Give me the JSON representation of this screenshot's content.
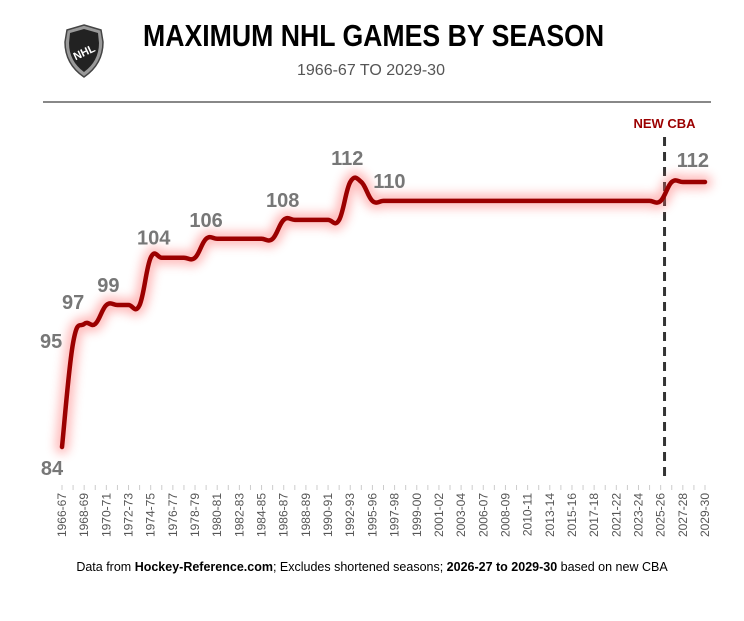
{
  "header": {
    "title": "MAXIMUM NHL GAMES BY SEASON",
    "subtitle": "1966-67 TO 2029-30",
    "logo_text": "NHL"
  },
  "footer": {
    "p1": "Data from ",
    "b1": "Hockey-Reference.com",
    "p2": "; Excludes shortened seasons; ",
    "b2": "2026-27 to 2029-30",
    "p3": " based on new CBA"
  },
  "colors": {
    "line": "#9b0000",
    "glow": "#ff6b6b",
    "label": "#777777",
    "cba": "#9b0000"
  },
  "chart_data": {
    "type": "line",
    "title": "MAXIMUM NHL GAMES BY SEASON",
    "subtitle": "1966-67 TO 2029-30",
    "xlabel": "",
    "ylabel": "",
    "ylim": [
      84,
      112
    ],
    "grid": false,
    "x": [
      "1966-67",
      "1967-68",
      "1968-69",
      "1969-70",
      "1970-71",
      "1971-72",
      "1972-73",
      "1973-74",
      "1974-75",
      "1975-76",
      "1976-77",
      "1977-78",
      "1978-79",
      "1979-80",
      "1980-81",
      "1981-82",
      "1982-83",
      "1983-84",
      "1984-85",
      "1985-86",
      "1986-87",
      "1987-88",
      "1988-89",
      "1989-90",
      "1990-91",
      "1991-92",
      "1992-93",
      "1993-94",
      "1995-96",
      "1996-97",
      "1997-98",
      "1998-99",
      "1999-00",
      "2000-01",
      "2001-02",
      "2002-03",
      "2003-04",
      "2005-06",
      "2006-07",
      "2007-08",
      "2008-09",
      "2009-10",
      "2010-11",
      "2011-12",
      "2013-14",
      "2014-15",
      "2015-16",
      "2016-17",
      "2017-18",
      "2018-19",
      "2021-22",
      "2022-23",
      "2023-24",
      "2024-25",
      "2025-26",
      "2026-27",
      "2027-28",
      "2028-29",
      "2029-30"
    ],
    "values": [
      84,
      95,
      97,
      97,
      99,
      99,
      99,
      99,
      104,
      104,
      104,
      104,
      104,
      106,
      106,
      106,
      106,
      106,
      106,
      106,
      108,
      108,
      108,
      108,
      108,
      108,
      112,
      112,
      110,
      110,
      110,
      110,
      110,
      110,
      110,
      110,
      110,
      110,
      110,
      110,
      110,
      110,
      110,
      110,
      110,
      110,
      110,
      110,
      110,
      110,
      110,
      110,
      110,
      110,
      110,
      112,
      112,
      112,
      112
    ],
    "tick_labels": [
      "1966-67",
      "1968-69",
      "1970-71",
      "1972-73",
      "1974-75",
      "1976-77",
      "1978-79",
      "1980-81",
      "1982-83",
      "1984-85",
      "1986-87",
      "1988-89",
      "1990-91",
      "1992-93",
      "1995-96",
      "1997-98",
      "1999-00",
      "2001-02",
      "2003-04",
      "2006-07",
      "2008-09",
      "2010-11",
      "2013-14",
      "2015-16",
      "2017-18",
      "2021-22",
      "2023-24",
      "2025-26",
      "2027-28",
      "2029-30"
    ],
    "data_labels": [
      {
        "index": 0,
        "text": "84"
      },
      {
        "index": 1,
        "text": "95"
      },
      {
        "index": 2,
        "text": "97"
      },
      {
        "index": 4,
        "text": "99"
      },
      {
        "index": 8,
        "text": "104"
      },
      {
        "index": 13,
        "text": "106"
      },
      {
        "index": 20,
        "text": "108"
      },
      {
        "index": 26,
        "text": "112"
      },
      {
        "index": 28,
        "text": "110"
      },
      {
        "index": 56,
        "text": "112"
      }
    ],
    "annotation": {
      "text": "NEW CBA",
      "between": [
        "2025-26",
        "2026-27"
      ]
    }
  }
}
